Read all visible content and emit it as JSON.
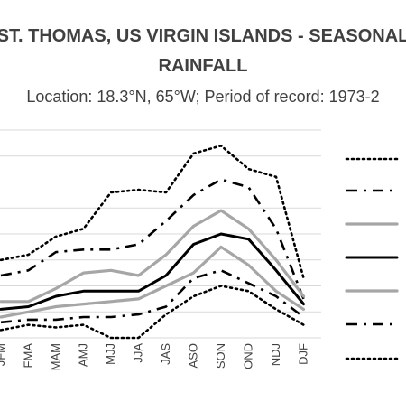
{
  "chart_data": {
    "type": "line",
    "title_lines": [
      "ST. THOMAS, US VIRGIN ISLANDS - SEASONAL",
      "RAINFALL"
    ],
    "subtitle": "Location: 18.3°N, 65°W; Period of record: 1973-2",
    "categories": [
      "JFM",
      "FMA",
      "MAM",
      "AMJ",
      "MJJ",
      "JJA",
      "JAS",
      "ASO",
      "SON",
      "OND",
      "NDJ",
      "DJF"
    ],
    "ylim": [
      0,
      8
    ],
    "grid": true,
    "legend_position": "right",
    "series": [
      {
        "style": "dotted-black",
        "color": "#000000",
        "values": [
          3.0,
          3.2,
          3.9,
          4.2,
          5.6,
          5.7,
          5.6,
          7.1,
          7.4,
          6.5,
          6.2,
          2.3
        ]
      },
      {
        "style": "dashdot-black",
        "color": "#000000",
        "values": [
          2.4,
          2.6,
          3.3,
          3.4,
          3.4,
          3.6,
          4.5,
          5.5,
          6.1,
          5.8,
          4.2,
          1.5
        ]
      },
      {
        "style": "solid-gray",
        "color": "#a6a6a6",
        "values": [
          1.4,
          1.4,
          1.9,
          2.5,
          2.6,
          2.4,
          3.2,
          4.3,
          4.9,
          4.2,
          3.0,
          1.6
        ]
      },
      {
        "style": "solid-black",
        "color": "#000000",
        "values": [
          1.1,
          1.2,
          1.6,
          1.8,
          1.8,
          1.8,
          2.4,
          3.6,
          4.0,
          3.8,
          2.6,
          1.3
        ]
      },
      {
        "style": "solid-gray",
        "color": "#a6a6a6",
        "values": [
          0.8,
          1.0,
          1.2,
          1.3,
          1.4,
          1.5,
          2.0,
          2.5,
          3.5,
          2.8,
          1.8,
          1.1
        ]
      },
      {
        "style": "dashdot-black",
        "color": "#000000",
        "values": [
          0.6,
          0.7,
          0.7,
          0.8,
          0.8,
          0.9,
          1.2,
          2.3,
          2.6,
          2.1,
          1.6,
          0.8
        ]
      },
      {
        "style": "dotted-black",
        "color": "#000000",
        "values": [
          0.3,
          0.5,
          0.4,
          0.5,
          0.0,
          0.0,
          0.9,
          1.6,
          2.0,
          1.8,
          1.1,
          0.5
        ]
      }
    ]
  }
}
